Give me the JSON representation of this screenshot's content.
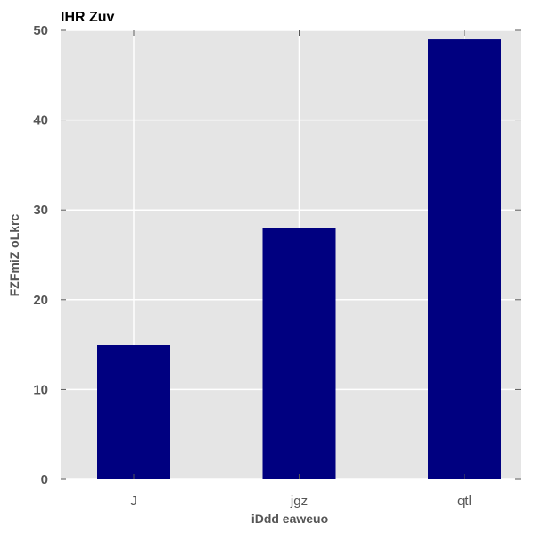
{
  "chart_data": {
    "type": "bar",
    "title": "IHR  Zuv",
    "xlabel": "iDdd eaweuo",
    "ylabel": "FZFmiZ oLkrc",
    "categories": [
      "J",
      "jgz",
      "qtl"
    ],
    "values": [
      15,
      28,
      49
    ],
    "ylim": [
      0,
      50
    ],
    "yticks": [
      0,
      10,
      20,
      30,
      40,
      50
    ],
    "grid": true,
    "colors": {
      "bar": "#000080",
      "plot_background": "#e5e5e5",
      "grid": "#ffffff",
      "axis_text": "#555555",
      "title_text": "#000000"
    }
  }
}
